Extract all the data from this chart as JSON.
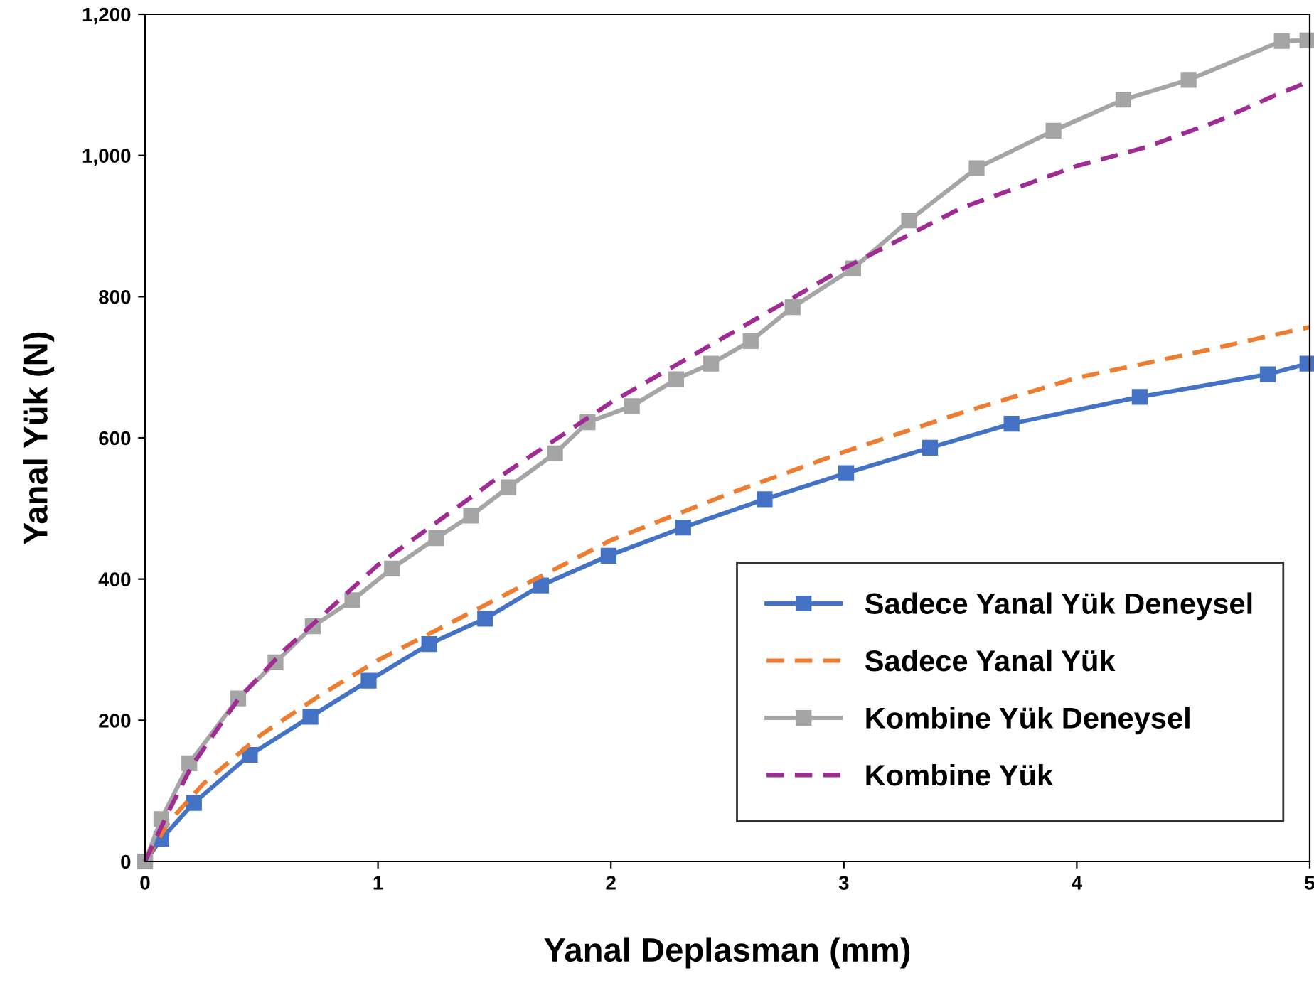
{
  "chart_data": {
    "type": "line",
    "xlabel": "Yanal Deplasman (mm)",
    "ylabel": "Yanal Yük (N)",
    "xlim": [
      0,
      5
    ],
    "ylim": [
      0,
      1200
    ],
    "xticks": [
      0,
      1,
      2,
      3,
      4,
      5
    ],
    "yticks": [
      0,
      200,
      400,
      600,
      800,
      {
        "value": 1000,
        "label": "1,000"
      },
      {
        "value": 1200,
        "label": "1,200"
      }
    ],
    "grid": false,
    "legend": "bottom right",
    "series": [
      {
        "name": "Sadece Yanal Yük Deneysel",
        "color": "#4472c4",
        "marker": "square",
        "line_style": "solid",
        "x": [
          0,
          0.07,
          0.21,
          0.45,
          0.71,
          0.96,
          1.22,
          1.46,
          1.7,
          1.99,
          2.31,
          2.66,
          3.01,
          3.37,
          3.72,
          4.27,
          4.82,
          4.99
        ],
        "values": [
          0,
          32,
          83,
          151,
          205,
          256,
          308,
          344,
          391,
          433,
          473,
          513,
          550,
          586,
          620,
          658,
          690,
          705
        ]
      },
      {
        "name": "Sadece Yanal Yük",
        "color": "#ed7d31",
        "marker": "none",
        "line_style": "dashed",
        "x": [
          0,
          0.1,
          0.25,
          0.5,
          0.75,
          1,
          1.5,
          2,
          2.5,
          3,
          3.5,
          4,
          4.5,
          5
        ],
        "values": [
          0,
          55,
          110,
          180,
          235,
          285,
          370,
          455,
          520,
          580,
          635,
          685,
          720,
          757
        ]
      },
      {
        "name": "Kombine Yük Deneysel",
        "color": "#a5a5a5",
        "marker": "square",
        "line_style": "solid",
        "x": [
          0,
          0.07,
          0.19,
          0.4,
          0.56,
          0.72,
          0.89,
          1.06,
          1.25,
          1.4,
          1.56,
          1.76,
          1.9,
          2.09,
          2.28,
          2.43,
          2.6,
          2.78,
          3.04,
          3.28,
          3.57,
          3.9,
          4.2,
          4.48,
          4.88,
          4.99
        ],
        "values": [
          0,
          60,
          139,
          231,
          282,
          333,
          370,
          415,
          458,
          490,
          530,
          578,
          622,
          645,
          683,
          705,
          737,
          785,
          840,
          908,
          982,
          1035,
          1079,
          1107,
          1162,
          1163
        ]
      },
      {
        "name": "Kombine Yük",
        "color": "#a02b93",
        "marker": "none",
        "line_style": "dashed",
        "x": [
          0,
          0.1,
          0.2,
          0.4,
          0.6,
          0.8,
          1,
          1.5,
          2,
          2.5,
          3,
          3.5,
          4,
          4.3,
          4.6,
          4.85,
          5
        ],
        "values": [
          0,
          70,
          135,
          230,
          300,
          360,
          420,
          540,
          650,
          745,
          840,
          925,
          985,
          1012,
          1048,
          1085,
          1105
        ]
      }
    ]
  }
}
